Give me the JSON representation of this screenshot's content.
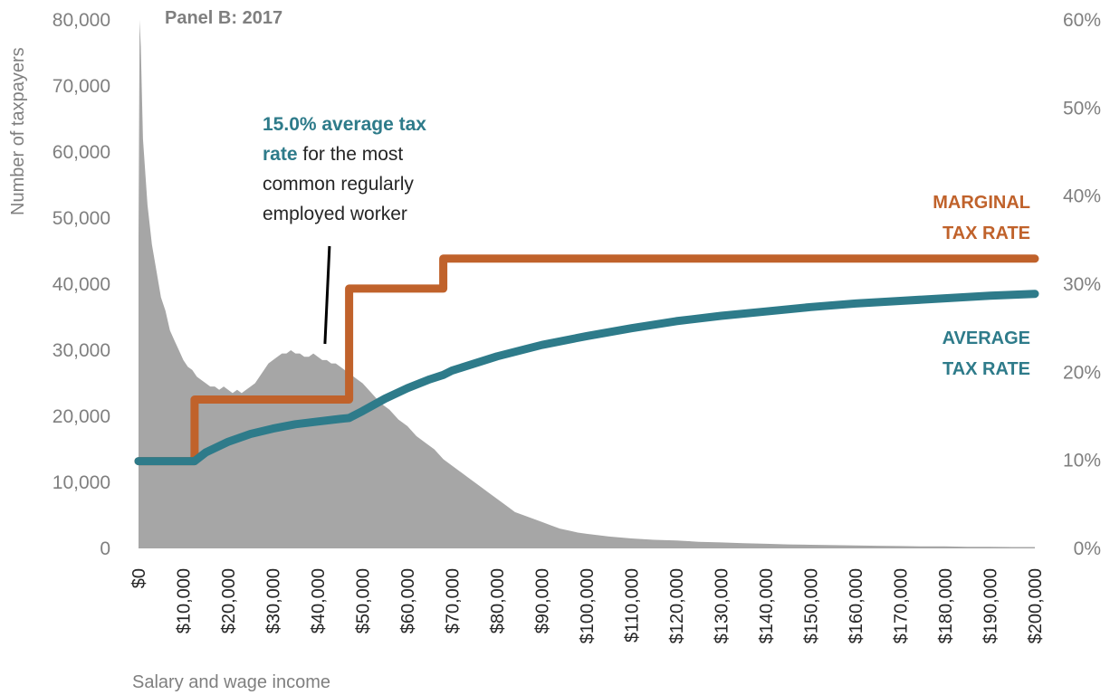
{
  "chart_data": {
    "type": "area",
    "title": "Panel B: 2017",
    "xlabel": "Salary and wage income",
    "ylabel": "Number of taxpayers",
    "xlim": [
      0,
      200000
    ],
    "ylim": [
      0,
      80000
    ],
    "y2lim": [
      0,
      60
    ],
    "x_ticks": [
      "$0",
      "$10,000",
      "$20,000",
      "$30,000",
      "$40,000",
      "$50,000",
      "$60,000",
      "$70,000",
      "$80,000",
      "$90,000",
      "$100,000",
      "$110,000",
      "$120,000",
      "$130,000",
      "$140,000",
      "$150,000",
      "$160,000",
      "$170,000",
      "$180,000",
      "$190,000",
      "$200,000"
    ],
    "y_ticks": [
      "0",
      "10,000",
      "20,000",
      "30,000",
      "40,000",
      "50,000",
      "60,000",
      "70,000",
      "80,000"
    ],
    "y2_ticks": [
      "0%",
      "10%",
      "20%",
      "30%",
      "40%",
      "50%",
      "60%"
    ],
    "distribution": {
      "name": "Number of taxpayers",
      "color": "#a6a6a6",
      "x": [
        0,
        250,
        500,
        1000,
        2000,
        3000,
        4000,
        5000,
        6000,
        7000,
        8000,
        9000,
        10000,
        11000,
        12000,
        13000,
        14000,
        15000,
        16000,
        17000,
        18000,
        19000,
        20000,
        21000,
        22000,
        23000,
        24000,
        25000,
        26000,
        27000,
        28000,
        29000,
        30000,
        31000,
        32000,
        33000,
        34000,
        35000,
        36000,
        37000,
        38000,
        39000,
        40000,
        41000,
        42000,
        43000,
        44000,
        45000,
        46000,
        47000,
        48000,
        49000,
        50000,
        52000,
        54000,
        56000,
        58000,
        60000,
        62000,
        64000,
        66000,
        68000,
        70000,
        72000,
        74000,
        76000,
        78000,
        80000,
        82000,
        84000,
        86000,
        88000,
        90000,
        92000,
        94000,
        96000,
        98000,
        100000,
        105000,
        110000,
        115000,
        120000,
        125000,
        130000,
        135000,
        140000,
        145000,
        150000,
        155000,
        160000,
        165000,
        170000,
        175000,
        180000,
        185000,
        190000,
        195000,
        200000
      ],
      "values": [
        47000,
        80000,
        76000,
        62000,
        52000,
        46000,
        42000,
        38000,
        36000,
        33000,
        31500,
        30000,
        28500,
        27500,
        27000,
        26000,
        25500,
        25000,
        24500,
        24500,
        24000,
        24500,
        24000,
        23500,
        24000,
        23500,
        24000,
        24500,
        25000,
        26000,
        27000,
        28000,
        28500,
        29000,
        29500,
        29500,
        30000,
        29500,
        29500,
        29000,
        29000,
        29500,
        29000,
        28500,
        28500,
        28000,
        28000,
        27500,
        27000,
        26500,
        26000,
        25500,
        25000,
        23500,
        22000,
        21000,
        19500,
        18500,
        17000,
        16000,
        15000,
        13500,
        12500,
        11500,
        10500,
        9500,
        8500,
        7500,
        6500,
        5500,
        5000,
        4500,
        4000,
        3500,
        3000,
        2700,
        2400,
        2200,
        1800,
        1500,
        1300,
        1200,
        1000,
        900,
        800,
        700,
        600,
        550,
        500,
        450,
        400,
        350,
        300,
        300,
        250,
        250,
        200,
        200
      ]
    },
    "series": [
      {
        "name": "MARGINAL TAX RATE",
        "label_lines": [
          "MARGINAL",
          "TAX RATE"
        ],
        "axis": "right",
        "color": "#c0622b",
        "x": [
          0,
          12500,
          12500,
          47000,
          47000,
          68000,
          68000,
          200000
        ],
        "values": [
          9.9,
          9.9,
          16.9,
          16.9,
          29.5,
          29.5,
          32.9,
          32.9
        ]
      },
      {
        "name": "AVERAGE TAX RATE",
        "label_lines": [
          "AVERAGE",
          "TAX RATE"
        ],
        "axis": "right",
        "color": "#2e7b8a",
        "x": [
          0,
          12500,
          15000,
          20000,
          25000,
          30000,
          35000,
          40000,
          45000,
          47000,
          50000,
          55000,
          60000,
          65000,
          68000,
          70000,
          80000,
          90000,
          100000,
          110000,
          120000,
          130000,
          140000,
          150000,
          160000,
          170000,
          180000,
          190000,
          200000
        ],
        "values": [
          9.9,
          9.9,
          10.9,
          12.1,
          13.0,
          13.6,
          14.1,
          14.4,
          14.7,
          14.8,
          15.6,
          17.0,
          18.2,
          19.2,
          19.7,
          20.2,
          21.8,
          23.1,
          24.1,
          25.0,
          25.8,
          26.4,
          26.9,
          27.4,
          27.8,
          28.1,
          28.4,
          28.7,
          28.9
        ]
      }
    ],
    "annotation": {
      "highlight": "15.0% average tax rate",
      "rest": " for the most common regularly employed worker",
      "lines": [
        {
          "hl": "15.0% average tax",
          "plain": ""
        },
        {
          "hl": "rate",
          "plain": " for the most"
        },
        {
          "hl": "",
          "plain": "common regularly"
        },
        {
          "hl": "",
          "plain": "employed worker"
        }
      ],
      "pointer_x": 42000
    },
    "grid": false,
    "legend": "direct labels"
  }
}
